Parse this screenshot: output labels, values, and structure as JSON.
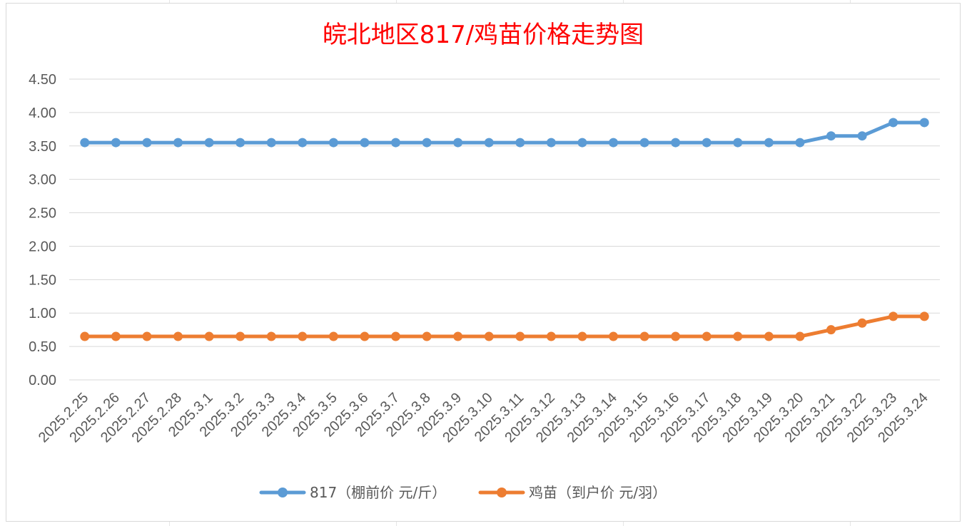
{
  "chart_data": {
    "type": "line",
    "title": "皖北地区817/鸡苗价格走势图",
    "xlabel": "",
    "ylabel": "",
    "ylim": [
      0,
      4.5
    ],
    "y_ticks": [
      "0.00",
      "0.50",
      "1.00",
      "1.50",
      "2.00",
      "2.50",
      "3.00",
      "3.50",
      "4.00",
      "4.50"
    ],
    "grid": true,
    "legend_position": "bottom",
    "categories": [
      "2025.2.25",
      "2025.2.26",
      "2025.2.27",
      "2025.2.28",
      "2025.3.1",
      "2025.3.2",
      "2025.3.3",
      "2025.3.4",
      "2025.3.5",
      "2025.3.6",
      "2025.3.7",
      "2025.3.8",
      "2025.3.9",
      "2025.3.10",
      "2025.3.11",
      "2025.3.12",
      "2025.3.13",
      "2025.3.14",
      "2025.3.15",
      "2025.3.16",
      "2025.3.17",
      "2025.3.18",
      "2025.3.19",
      "2025.3.20",
      "2025.3.21",
      "2025.3.22",
      "2025.3.23",
      "2025.3.24"
    ],
    "series": [
      {
        "name": "817（棚前价 元/斤）",
        "color": "#5b9bd5",
        "values": [
          3.55,
          3.55,
          3.55,
          3.55,
          3.55,
          3.55,
          3.55,
          3.55,
          3.55,
          3.55,
          3.55,
          3.55,
          3.55,
          3.55,
          3.55,
          3.55,
          3.55,
          3.55,
          3.55,
          3.55,
          3.55,
          3.55,
          3.55,
          3.55,
          3.65,
          3.65,
          3.85,
          3.85
        ]
      },
      {
        "name": "鸡苗（到户价 元/羽）",
        "color": "#ed7d31",
        "values": [
          0.65,
          0.65,
          0.65,
          0.65,
          0.65,
          0.65,
          0.65,
          0.65,
          0.65,
          0.65,
          0.65,
          0.65,
          0.65,
          0.65,
          0.65,
          0.65,
          0.65,
          0.65,
          0.65,
          0.65,
          0.65,
          0.65,
          0.65,
          0.65,
          0.75,
          0.85,
          0.95,
          0.95
        ]
      }
    ]
  }
}
